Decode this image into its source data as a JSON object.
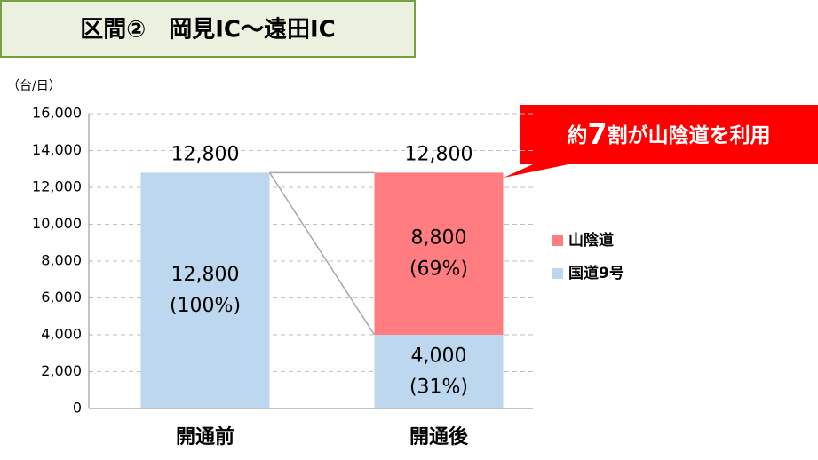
{
  "chart_data": {
    "type": "stacked_bar",
    "title": "区間②　岡見IC～遠田IC",
    "y_unit": "（台/日）",
    "categories": [
      "開通前",
      "開通後"
    ],
    "series": [
      {
        "name": "国道9号",
        "color": "#bdd7ee",
        "values": [
          12800,
          4000
        ],
        "value_labels": [
          "12,800",
          "4,000"
        ],
        "share_labels": [
          "(100%)",
          "(31%)"
        ]
      },
      {
        "name": "山陰道",
        "color": "#ff7c80",
        "values": [
          null,
          8800
        ],
        "value_labels": [
          null,
          "8,800"
        ],
        "share_labels": [
          null,
          "(69%)"
        ]
      }
    ],
    "totals": [
      12800,
      12800
    ],
    "total_labels": [
      "12,800",
      "12,800"
    ],
    "annotation": [
      "約",
      "7",
      "割が山陰道を利用"
    ],
    "ylim": [
      0,
      16000
    ],
    "yticks": [
      0,
      {
        "value": 2000,
        "label": "2,000"
      },
      {
        "value": 4000,
        "label": "4,000"
      },
      {
        "value": 6000,
        "label": "6,000"
      },
      {
        "value": 8000,
        "label": "8,000"
      },
      {
        "value": 10000,
        "label": "10,000"
      },
      {
        "value": 12000,
        "label": "12,000"
      },
      {
        "value": 14000,
        "label": "14,000"
      },
      {
        "value": 16000,
        "label": "16,000"
      }
    ],
    "grid": true
  }
}
